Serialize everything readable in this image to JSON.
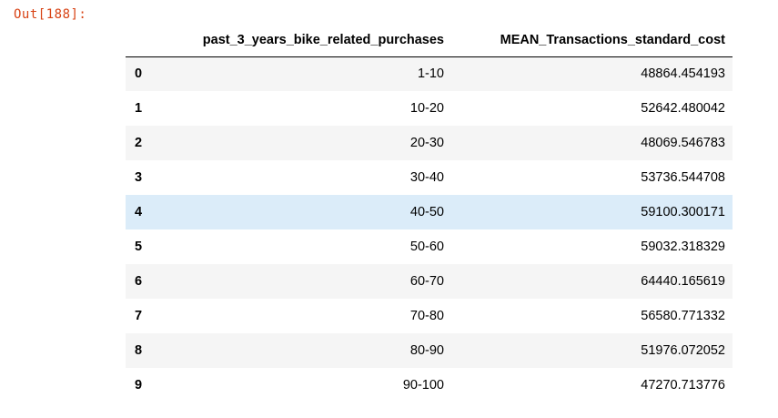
{
  "prompt": "Out[188]:",
  "table": {
    "index_header": "",
    "columns": [
      "past_3_years_bike_related_purchases",
      "MEAN_Transactions_standard_cost"
    ],
    "rows": [
      {
        "index": "0",
        "purchases": "1-10",
        "mean_cost": "48864.454193"
      },
      {
        "index": "1",
        "purchases": "10-20",
        "mean_cost": "52642.480042"
      },
      {
        "index": "2",
        "purchases": "20-30",
        "mean_cost": "48069.546783"
      },
      {
        "index": "3",
        "purchases": "30-40",
        "mean_cost": "53736.544708"
      },
      {
        "index": "4",
        "purchases": "40-50",
        "mean_cost": "59100.300171"
      },
      {
        "index": "5",
        "purchases": "50-60",
        "mean_cost": "59032.318329"
      },
      {
        "index": "6",
        "purchases": "60-70",
        "mean_cost": "64440.165619"
      },
      {
        "index": "7",
        "purchases": "70-80",
        "mean_cost": "56580.771332"
      },
      {
        "index": "8",
        "purchases": "80-90",
        "mean_cost": "51976.072052"
      },
      {
        "index": "9",
        "purchases": "90-100",
        "mean_cost": "47270.713776"
      }
    ]
  },
  "colors": {
    "prompt": "#d84315",
    "row_stripe": "#f5f5f5",
    "row_hover": "#dbecf9"
  }
}
